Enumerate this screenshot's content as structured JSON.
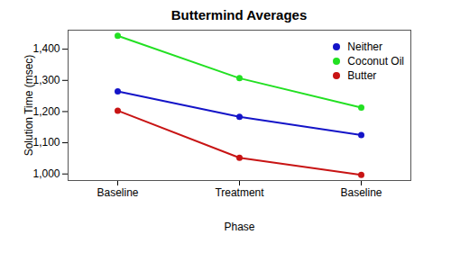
{
  "chart_data": {
    "type": "line",
    "title": "Buttermind Averages",
    "x_label": "Phase",
    "y_label": "Solution Time (msec)",
    "categories": [
      "Baseline",
      "Treatment",
      "Baseline"
    ],
    "series": [
      {
        "name": "Neither",
        "color": "#1414c8",
        "values": [
          1265,
          1183,
          1125
        ]
      },
      {
        "name": "Coconut Oil",
        "color": "#22e022",
        "values": [
          1443,
          1307,
          1213
        ]
      },
      {
        "name": "Butter",
        "color": "#c81414",
        "values": [
          1203,
          1052,
          997
        ]
      }
    ],
    "ylim": [
      979,
      1461
    ],
    "yticks": [
      1000,
      1100,
      1200,
      1300,
      1400
    ],
    "grid": false,
    "legend": "topright",
    "marker": "circle"
  }
}
